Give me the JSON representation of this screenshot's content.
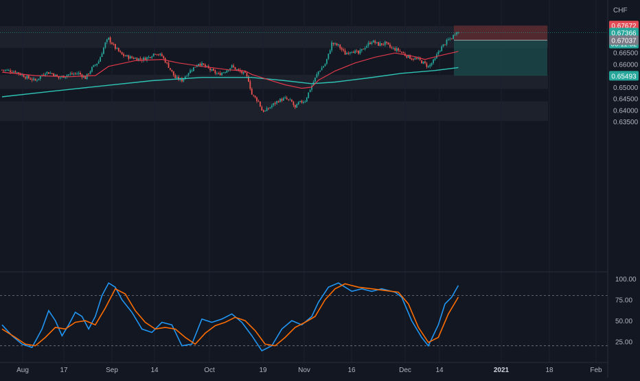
{
  "currency": "CHF",
  "colors": {
    "background": "#131722",
    "up": "#26a69a",
    "down": "#ef5350",
    "ma_fast": "#e0394b",
    "ma_slow": "#2ec4b6",
    "k_line": "#2196f3",
    "d_line": "#ff6d00",
    "zone": "#1e222d",
    "tp_zone": "#1c4e4e",
    "sl_zone": "#5a2a30"
  },
  "price_badges": {
    "stop": "0.67672",
    "current": "0.67366",
    "countdown": "08:11:52",
    "entry": "0.67037",
    "target": "0.65493"
  },
  "chart_data": [
    {
      "type": "candlestick",
      "title": "",
      "series_names": [],
      "y_ticks": [
        "0.67500",
        "0.67000",
        "0.66500",
        "0.66000",
        "0.65500",
        "0.65000",
        "0.64500",
        "0.64000",
        "0.63500"
      ],
      "y_range": [
        0.6335,
        0.6785
      ],
      "x_ticks": [
        "Aug",
        "17",
        "Sep",
        "14",
        "Oct",
        "19",
        "Nov",
        "16",
        "Dec",
        "14",
        "2021",
        "18",
        "Feb"
      ],
      "zones": [
        {
          "low": 0.667,
          "high": 0.6765
        },
        {
          "low": 0.6492,
          "high": 0.6553
        },
        {
          "low": 0.6353,
          "high": 0.6438
        }
      ],
      "position": {
        "stop": 0.67672,
        "entry": 0.67037,
        "target": 0.65493
      },
      "anchors": [
        [
          0,
          0.6575
        ],
        [
          8,
          0.6568
        ],
        [
          14,
          0.6545
        ],
        [
          20,
          0.6528
        ],
        [
          26,
          0.6565
        ],
        [
          30,
          0.656
        ],
        [
          34,
          0.654
        ],
        [
          40,
          0.6555
        ],
        [
          46,
          0.656
        ],
        [
          50,
          0.654
        ],
        [
          54,
          0.6582
        ],
        [
          58,
          0.6612
        ],
        [
          62,
          0.669
        ],
        [
          64,
          0.671
        ],
        [
          68,
          0.667
        ],
        [
          72,
          0.664
        ],
        [
          76,
          0.663
        ],
        [
          80,
          0.6625
        ],
        [
          84,
          0.662
        ],
        [
          88,
          0.663
        ],
        [
          92,
          0.665
        ],
        [
          96,
          0.6635
        ],
        [
          100,
          0.659
        ],
        [
          104,
          0.654
        ],
        [
          108,
          0.653
        ],
        [
          112,
          0.6565
        ],
        [
          116,
          0.659
        ],
        [
          118,
          0.6605
        ],
        [
          122,
          0.659
        ],
        [
          126,
          0.657
        ],
        [
          130,
          0.6555
        ],
        [
          134,
          0.657
        ],
        [
          138,
          0.659
        ],
        [
          142,
          0.657
        ],
        [
          146,
          0.6555
        ],
        [
          148,
          0.653
        ],
        [
          150,
          0.6468
        ],
        [
          154,
          0.6438
        ],
        [
          156,
          0.64
        ],
        [
          158,
          0.6395
        ],
        [
          162,
          0.642
        ],
        [
          166,
          0.6442
        ],
        [
          170,
          0.645
        ],
        [
          174,
          0.6435
        ],
        [
          176,
          0.6408
        ],
        [
          178,
          0.643
        ],
        [
          182,
          0.6442
        ],
        [
          186,
          0.6508
        ],
        [
          190,
          0.6568
        ],
        [
          194,
          0.66
        ],
        [
          196,
          0.664
        ],
        [
          198,
          0.669
        ],
        [
          202,
          0.668
        ],
        [
          206,
          0.6645
        ],
        [
          210,
          0.666
        ],
        [
          214,
          0.6645
        ],
        [
          218,
          0.6675
        ],
        [
          222,
          0.67
        ],
        [
          226,
          0.6685
        ],
        [
          230,
          0.669
        ],
        [
          234,
          0.6668
        ],
        [
          238,
          0.666
        ],
        [
          242,
          0.664
        ],
        [
          246,
          0.6625
        ],
        [
          250,
          0.662
        ],
        [
          254,
          0.66
        ],
        [
          256,
          0.6588
        ],
        [
          260,
          0.662
        ],
        [
          262,
          0.6655
        ],
        [
          266,
          0.669
        ],
        [
          268,
          0.6705
        ],
        [
          270,
          0.6713
        ],
        [
          273,
          0.6745
        ],
        [
          274,
          0.6737
        ]
      ],
      "ma_fast": [
        [
          0,
          0.6565
        ],
        [
          20,
          0.655
        ],
        [
          40,
          0.6545
        ],
        [
          56,
          0.655
        ],
        [
          64,
          0.659
        ],
        [
          80,
          0.6615
        ],
        [
          96,
          0.662
        ],
        [
          106,
          0.6605
        ],
        [
          120,
          0.659
        ],
        [
          136,
          0.6575
        ],
        [
          146,
          0.657
        ],
        [
          150,
          0.6555
        ],
        [
          160,
          0.6532
        ],
        [
          170,
          0.651
        ],
        [
          180,
          0.6495
        ],
        [
          186,
          0.65
        ],
        [
          190,
          0.653
        ],
        [
          200,
          0.657
        ],
        [
          212,
          0.6605
        ],
        [
          224,
          0.663
        ],
        [
          236,
          0.6648
        ],
        [
          246,
          0.6635
        ],
        [
          254,
          0.662
        ],
        [
          262,
          0.6635
        ],
        [
          274,
          0.6655
        ]
      ],
      "ma_slow": [
        [
          0,
          0.6458
        ],
        [
          30,
          0.6482
        ],
        [
          60,
          0.6505
        ],
        [
          90,
          0.6528
        ],
        [
          120,
          0.6542
        ],
        [
          150,
          0.6542
        ],
        [
          170,
          0.6528
        ],
        [
          186,
          0.6515
        ],
        [
          200,
          0.6522
        ],
        [
          220,
          0.654
        ],
        [
          240,
          0.656
        ],
        [
          260,
          0.6572
        ],
        [
          274,
          0.6585
        ]
      ]
    },
    {
      "type": "line",
      "title": "",
      "series_names": [],
      "y_ticks": [
        "100.00",
        "75.00",
        "50.00",
        "25.00"
      ],
      "y_range": [
        5,
        105
      ],
      "levels": [
        80,
        20
      ],
      "k": [
        [
          0,
          45
        ],
        [
          6,
          32
        ],
        [
          12,
          22
        ],
        [
          18,
          18
        ],
        [
          24,
          40
        ],
        [
          28,
          62
        ],
        [
          32,
          50
        ],
        [
          36,
          32
        ],
        [
          40,
          45
        ],
        [
          44,
          60
        ],
        [
          48,
          55
        ],
        [
          52,
          40
        ],
        [
          56,
          55
        ],
        [
          60,
          80
        ],
        [
          64,
          95
        ],
        [
          68,
          90
        ],
        [
          72,
          75
        ],
        [
          78,
          60
        ],
        [
          84,
          40
        ],
        [
          90,
          36
        ],
        [
          96,
          48
        ],
        [
          102,
          45
        ],
        [
          108,
          20
        ],
        [
          114,
          22
        ],
        [
          120,
          52
        ],
        [
          126,
          48
        ],
        [
          132,
          52
        ],
        [
          138,
          58
        ],
        [
          144,
          48
        ],
        [
          150,
          32
        ],
        [
          156,
          14
        ],
        [
          162,
          20
        ],
        [
          168,
          40
        ],
        [
          174,
          50
        ],
        [
          180,
          45
        ],
        [
          186,
          55
        ],
        [
          190,
          72
        ],
        [
          196,
          90
        ],
        [
          202,
          95
        ],
        [
          210,
          85
        ],
        [
          216,
          88
        ],
        [
          222,
          85
        ],
        [
          228,
          88
        ],
        [
          236,
          84
        ],
        [
          240,
          78
        ],
        [
          246,
          50
        ],
        [
          252,
          30
        ],
        [
          256,
          20
        ],
        [
          262,
          45
        ],
        [
          266,
          70
        ],
        [
          270,
          78
        ],
        [
          274,
          92
        ]
      ],
      "d": [
        [
          0,
          40
        ],
        [
          8,
          30
        ],
        [
          14,
          22
        ],
        [
          20,
          20
        ],
        [
          26,
          30
        ],
        [
          32,
          42
        ],
        [
          38,
          40
        ],
        [
          44,
          48
        ],
        [
          50,
          50
        ],
        [
          56,
          45
        ],
        [
          62,
          65
        ],
        [
          68,
          88
        ],
        [
          74,
          82
        ],
        [
          80,
          62
        ],
        [
          86,
          48
        ],
        [
          92,
          40
        ],
        [
          98,
          42
        ],
        [
          104,
          40
        ],
        [
          110,
          30
        ],
        [
          116,
          22
        ],
        [
          122,
          35
        ],
        [
          128,
          44
        ],
        [
          134,
          48
        ],
        [
          140,
          54
        ],
        [
          146,
          50
        ],
        [
          152,
          38
        ],
        [
          158,
          22
        ],
        [
          164,
          20
        ],
        [
          170,
          30
        ],
        [
          176,
          42
        ],
        [
          182,
          48
        ],
        [
          188,
          55
        ],
        [
          194,
          75
        ],
        [
          200,
          88
        ],
        [
          206,
          94
        ],
        [
          214,
          90
        ],
        [
          222,
          88
        ],
        [
          230,
          86
        ],
        [
          238,
          84
        ],
        [
          244,
          70
        ],
        [
          250,
          42
        ],
        [
          256,
          24
        ],
        [
          262,
          30
        ],
        [
          268,
          58
        ],
        [
          274,
          78
        ]
      ]
    }
  ]
}
